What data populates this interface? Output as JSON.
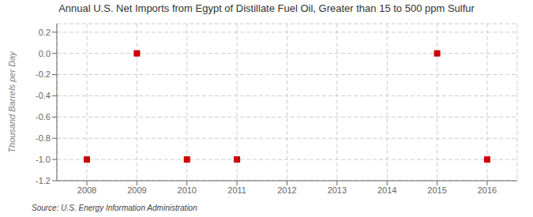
{
  "chart_data": {
    "type": "scatter",
    "title": "Annual U.S. Net Imports from Egypt of Distillate Fuel Oil, Greater than 15 to 500 ppm Sulfur",
    "ylabel": "Thousand Barrels per Day",
    "source": "Source: U.S. Energy Information Administration",
    "x": [
      2008,
      2009,
      2010,
      2011,
      2015,
      2016
    ],
    "values": [
      -1.0,
      0.0,
      -1.0,
      -1.0,
      0.0,
      -1.0
    ],
    "xlim": [
      2007.4,
      2016.6
    ],
    "ylim": [
      -1.2,
      0.28
    ],
    "xticks": [
      2008,
      2009,
      2010,
      2011,
      2012,
      2013,
      2014,
      2015,
      2016
    ],
    "yticks": [
      0.2,
      {
        "value": 0.0,
        "label": "0.0"
      },
      -0.2,
      -0.4,
      -0.6,
      -0.8,
      {
        "value": -1.0,
        "label": "-1.0"
      },
      -1.2
    ],
    "color": "#CC0000",
    "marker": "square",
    "grid": true
  }
}
